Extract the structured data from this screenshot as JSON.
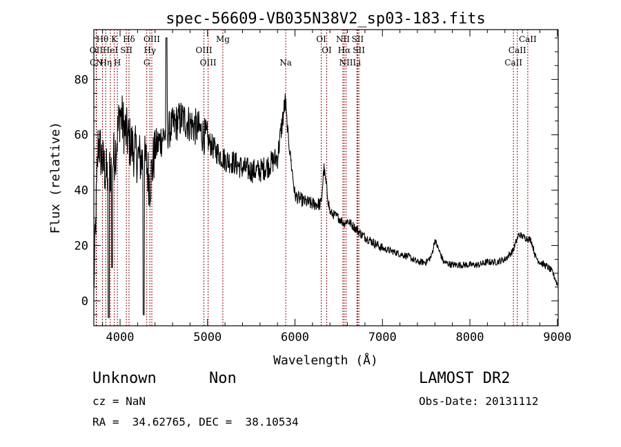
{
  "chart_data": {
    "type": "line",
    "title": "spec-56609-VB035N38V2_sp03-183.fits",
    "xlabel": "Wavelength (Å)",
    "ylabel": "Flux (relative)",
    "xlim": [
      3700,
      9010
    ],
    "ylim": [
      -9,
      98
    ],
    "xticks": [
      4000,
      5000,
      6000,
      7000,
      8000,
      9000
    ],
    "yticks": [
      0,
      20,
      40,
      60,
      80
    ],
    "grid": false,
    "line_color": "#000000",
    "marker_color": "#8b0000",
    "spectrum_anchor_points": {
      "x": [
        3700,
        3750,
        3800,
        3850,
        3900,
        3950,
        4000,
        4050,
        4100,
        4150,
        4200,
        4300,
        4340,
        4400,
        4500,
        4600,
        4700,
        4800,
        4900,
        5000,
        5100,
        5200,
        5300,
        5400,
        5500,
        5600,
        5700,
        5800,
        5870,
        5890,
        5920,
        6000,
        6100,
        6200,
        6300,
        6330,
        6400,
        6500,
        6560,
        6600,
        6700,
        6760,
        6900,
        7000,
        7100,
        7200,
        7300,
        7400,
        7500,
        7560,
        7600,
        7650,
        7700,
        7800,
        7900,
        8000,
        8100,
        8200,
        8300,
        8400,
        8490,
        8560,
        8620,
        8700,
        8750,
        8800,
        8900,
        8950,
        9000
      ],
      "y": [
        5,
        58,
        50,
        45,
        48,
        55,
        68,
        62,
        58,
        55,
        52,
        50,
        42,
        55,
        60,
        63,
        66,
        64,
        62,
        58,
        54,
        51,
        50,
        48,
        47,
        47,
        49,
        52,
        68,
        72,
        60,
        38,
        36,
        35,
        35,
        48,
        32,
        30,
        28,
        29,
        26,
        24,
        21,
        19,
        18,
        17,
        16,
        14,
        14,
        16,
        22,
        18,
        14,
        13,
        13,
        13,
        13,
        14,
        14,
        15,
        18,
        24,
        23,
        22,
        16,
        14,
        12,
        10,
        6
      ]
    },
    "spectral_lines": [
      {
        "label": "Hθ",
        "wavelength": 3798,
        "row": 1
      },
      {
        "label": "OII",
        "wavelength": 3727,
        "row": 2
      },
      {
        "label": "Hη",
        "wavelength": 3836,
        "row": 3
      },
      {
        "label": "CN",
        "wavelength": 3730,
        "row": 3
      },
      {
        "label": "K",
        "wavelength": 3934,
        "row": 1
      },
      {
        "label": "H",
        "wavelength": 3969,
        "row": 3
      },
      {
        "label": "HeI",
        "wavelength": 3889,
        "row": 2
      },
      {
        "label": "SII",
        "wavelength": 4072,
        "row": 2
      },
      {
        "label": "Hδ",
        "wavelength": 4102,
        "row": 1
      },
      {
        "label": "OIII",
        "wavelength": 4363,
        "row": 1
      },
      {
        "label": "Hγ",
        "wavelength": 4341,
        "row": 2
      },
      {
        "label": "G",
        "wavelength": 4305,
        "row": 3
      },
      {
        "label": "OIII",
        "wavelength": 4959,
        "row": 2
      },
      {
        "label": "OIII",
        "wavelength": 5007,
        "row": 3
      },
      {
        "label": "Mg",
        "wavelength": 5175,
        "row": 1
      },
      {
        "label": "Na",
        "wavelength": 5894,
        "row": 3
      },
      {
        "label": "OI",
        "wavelength": 6300,
        "row": 1
      },
      {
        "label": "OI",
        "wavelength": 6363,
        "row": 2
      },
      {
        "label": "NII",
        "wavelength": 6548,
        "row": 1
      },
      {
        "label": "NII",
        "wavelength": 6584,
        "row": 3
      },
      {
        "label": "Hα",
        "wavelength": 6563,
        "row": 2
      },
      {
        "label": "SII",
        "wavelength": 6717,
        "row": 1
      },
      {
        "label": "SII",
        "wavelength": 6731,
        "row": 2
      },
      {
        "label": "Li",
        "wavelength": 6708,
        "row": 3
      },
      {
        "label": "CaII",
        "wavelength": 8662,
        "row": 1
      },
      {
        "label": "CaII",
        "wavelength": 8542,
        "row": 2
      },
      {
        "label": "CaII",
        "wavelength": 8498,
        "row": 3
      }
    ]
  },
  "footer": {
    "class": "Unknown",
    "subclass": "Non",
    "survey": "LAMOST DR2",
    "cz": "cz = NaN",
    "obs_date": "Obs-Date: 20131112",
    "coords": "RA =  34.62765, DEC =  38.10534"
  }
}
